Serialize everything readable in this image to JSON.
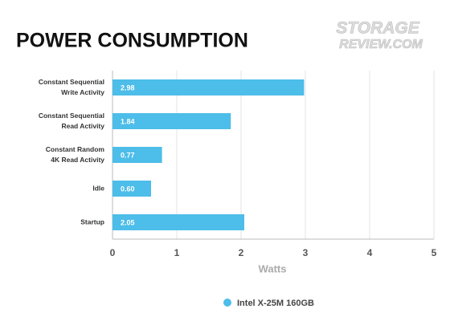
{
  "chart_data": {
    "type": "bar",
    "orientation": "horizontal",
    "title": "POWER CONSUMPTION",
    "watermark": [
      "STORAGE",
      "REVIEW.COM"
    ],
    "categories": [
      "Constant Sequential\nWrite Activity",
      "Constant Sequential\nRead Activity",
      "Constant Random\n4K Read Activity",
      "Idle",
      "Startup"
    ],
    "series": [
      {
        "name": "Intel X-25M 160GB",
        "color": "#4dbde9",
        "values": [
          2.98,
          1.84,
          0.77,
          0.6,
          2.05
        ],
        "value_labels": [
          "2.98",
          "1.84",
          "0.77",
          "0.60",
          "2.05"
        ]
      }
    ],
    "xlabel": "Watts",
    "xlim": [
      0,
      5
    ],
    "xticks": [
      0,
      1,
      2,
      3,
      4,
      5
    ],
    "grid": true
  }
}
